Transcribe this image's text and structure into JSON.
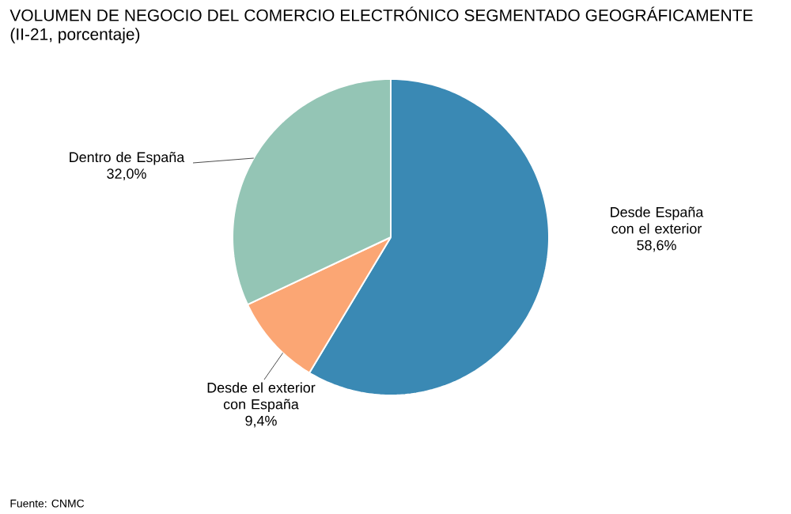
{
  "chart_data": {
    "type": "pie",
    "title": "VOLUMEN DE NEGOCIO DEL COMERCIO ELECTRÓNICO SEGMENTADO GEOGRÁFICAMENTE (II-21, porcentaje)",
    "categories": [
      "Desde España con el exterior",
      "Desde el exterior con España",
      "Dentro de España"
    ],
    "values": [
      58.6,
      9.4,
      32.0
    ],
    "value_labels": [
      "58,6%",
      "9,4%",
      "32,0%"
    ],
    "colors": [
      "#3a89b4",
      "#fba674",
      "#94c5b5"
    ],
    "annotations": [
      "Fuente: CNMC"
    ]
  }
}
